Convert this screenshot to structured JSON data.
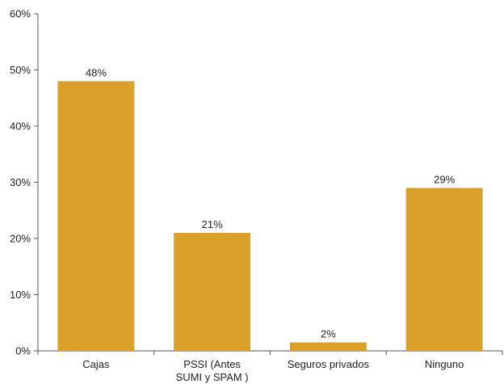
{
  "chart_data": {
    "type": "bar",
    "categories": [
      "Cajas",
      "PSSI (Antes SUMI y SPAM )",
      "Seguros privados",
      "Ninguno"
    ],
    "category_label_lines": [
      [
        "Cajas"
      ],
      [
        "PSSI (Antes",
        "SUMI y SPAM )"
      ],
      [
        "Seguros privados"
      ],
      [
        "Ninguno"
      ]
    ],
    "values": [
      48,
      21,
      1.5,
      29
    ],
    "data_labels": [
      "48%",
      "21%",
      "2%",
      "29%"
    ],
    "ylim": [
      0,
      60
    ],
    "yticks": [
      0,
      10,
      20,
      30,
      40,
      50,
      60
    ],
    "ytick_labels": [
      "0%",
      "10%",
      "20%",
      "30%",
      "40%",
      "50%",
      "60%"
    ],
    "grid": false,
    "legend": "none",
    "title": "",
    "xlabel": "",
    "ylabel": ""
  },
  "colors": {
    "bar": "#DBA02A",
    "axis": "#555555",
    "text": "#222222"
  }
}
